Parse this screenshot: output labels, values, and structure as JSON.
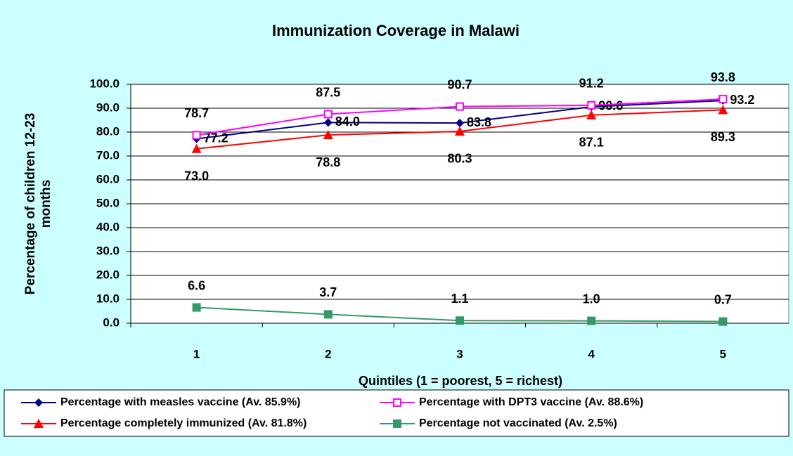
{
  "chart_data": {
    "type": "line",
    "title": "Immunization Coverage in Malawi",
    "xlabel": "Quintiles (1 = poorest, 5 = richest)",
    "ylabel": [
      "Percentage of children 12-23",
      "months"
    ],
    "categories": [
      "1",
      "2",
      "3",
      "4",
      "5"
    ],
    "ylim": [
      0,
      100
    ],
    "yticks": [
      {
        "value": 0,
        "label": "0.0"
      },
      {
        "value": 10,
        "label": "10.0"
      },
      {
        "value": 20,
        "label": "20.0"
      },
      {
        "value": 30,
        "label": "30.0"
      },
      {
        "value": 40,
        "label": "40.0"
      },
      {
        "value": 50,
        "label": "50.0"
      },
      {
        "value": 60,
        "label": "60.0"
      },
      {
        "value": 70,
        "label": "70.0"
      },
      {
        "value": 80,
        "label": "80.0"
      },
      {
        "value": 90,
        "label": "90.0"
      },
      {
        "value": 100,
        "label": "100.0"
      }
    ],
    "grid": true,
    "legend": "bottom",
    "series": [
      {
        "name": "Percentage with measles vaccine (Av. 85.9%)",
        "color": "#000080",
        "marker": "diamond",
        "label_position": "right",
        "values": [
          77.2,
          84.0,
          83.8,
          90.6,
          93.2
        ],
        "value_labels": [
          "77.2",
          "84.0",
          "83.8",
          "90.6",
          "93.2"
        ]
      },
      {
        "name": "Percentage with DPT3 vaccine (Av. 88.6%)",
        "color": "#ff00ff",
        "marker": "square-open",
        "label_position": "above",
        "values": [
          78.7,
          87.5,
          90.7,
          91.2,
          93.8
        ],
        "value_labels": [
          "78.7",
          "87.5",
          "90.7",
          "91.2",
          "93.8"
        ]
      },
      {
        "name": "Percentage completely immunized (Av. 81.8%)",
        "color": "#ff0000",
        "marker": "triangle",
        "label_position": "below",
        "values": [
          73.0,
          78.8,
          80.3,
          87.1,
          89.3
        ],
        "value_labels": [
          "73.0",
          "78.8",
          "80.3",
          "87.1",
          "89.3"
        ]
      },
      {
        "name": "Percentage not vaccinated (Av. 2.5%)",
        "color": "#339966",
        "marker": "square",
        "label_position": "above",
        "values": [
          6.6,
          3.7,
          1.1,
          1.0,
          0.7
        ],
        "value_labels": [
          "6.6",
          "3.7",
          "1.1",
          "1.0",
          "0.7"
        ]
      }
    ]
  }
}
